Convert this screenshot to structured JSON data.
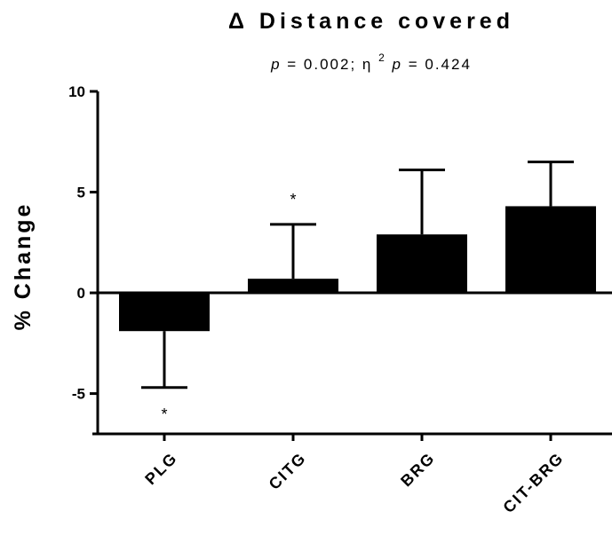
{
  "chart_data": {
    "type": "bar",
    "title": "Δ Distance covered",
    "subtitle": {
      "p_symbol": "p",
      "p_text": " = 0.002; η",
      "superscript": "2",
      "p2_symbol": "p",
      "tail": " = 0.424"
    },
    "ylabel": "% Change",
    "xlabel": "",
    "ylim": [
      -7,
      10
    ],
    "yticks": [
      -5,
      0,
      5,
      10
    ],
    "ytick_labels": [
      "-5",
      "0",
      "5",
      "10"
    ],
    "categories": [
      "PLG",
      "CITG",
      "BRG",
      "CIT-BRG"
    ],
    "values": [
      -1.9,
      0.7,
      2.9,
      4.3
    ],
    "error": [
      2.8,
      2.7,
      3.2,
      2.2
    ],
    "significance": [
      "*",
      "*",
      "",
      ""
    ],
    "bar_color": "#000000",
    "grid": false
  }
}
